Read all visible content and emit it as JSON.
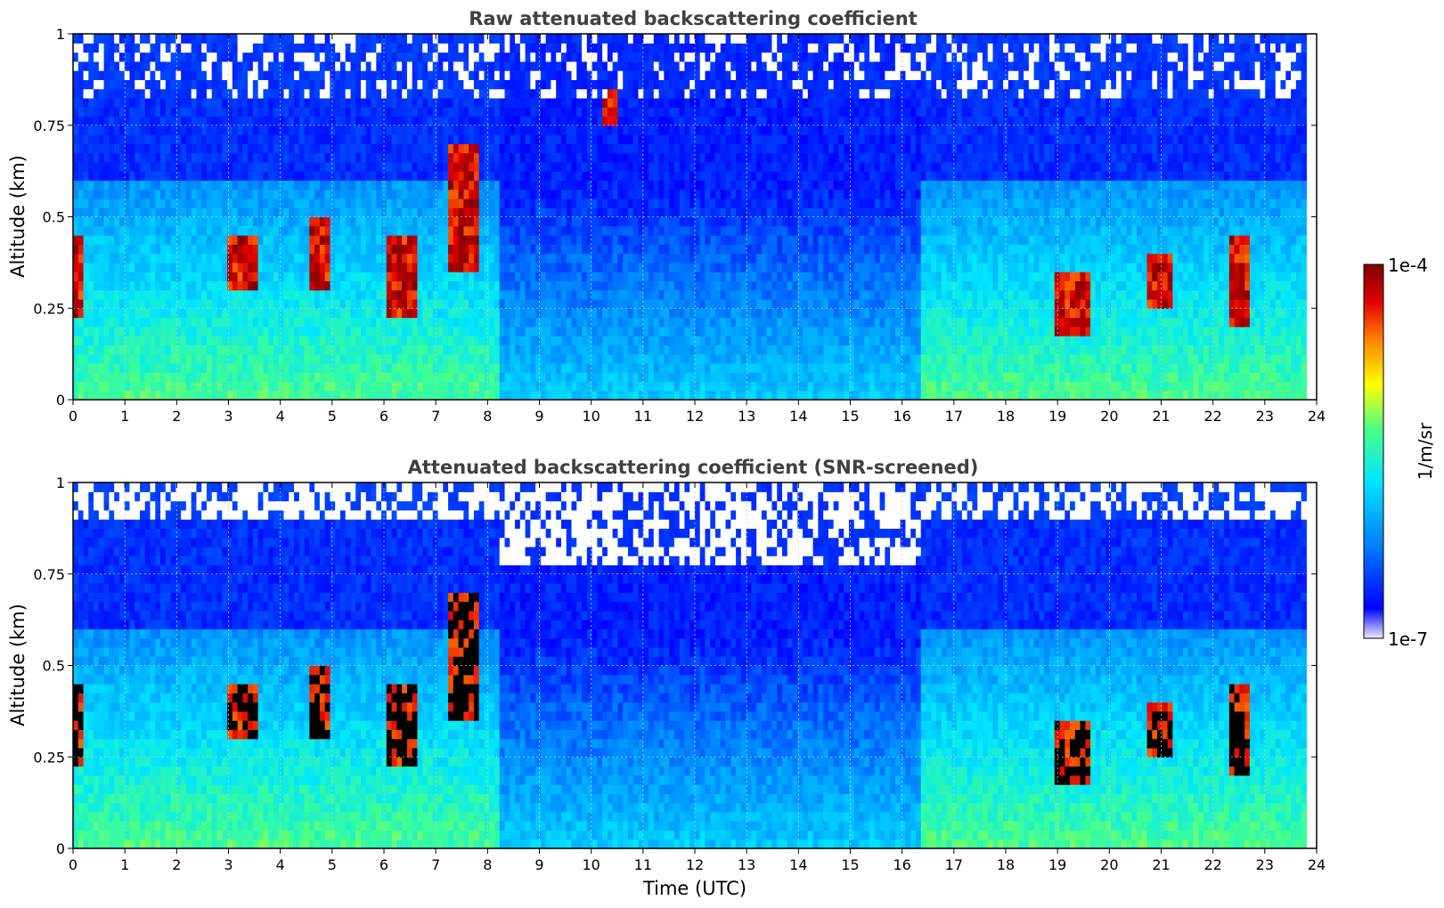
{
  "chart_data": [
    {
      "type": "heatmap",
      "title": "Raw attenuated backscattering coefficient",
      "xlabel": "",
      "ylabel": "Altitude (km)",
      "xlim": [
        0,
        24
      ],
      "ylim": [
        0,
        1
      ],
      "x_ticks": [
        "0",
        "1",
        "2",
        "3",
        "4",
        "5",
        "6",
        "7",
        "8",
        "9",
        "10",
        "11",
        "12",
        "13",
        "14",
        "15",
        "16",
        "17",
        "18",
        "19",
        "20",
        "21",
        "22",
        "23",
        "24"
      ],
      "y_ticks": [
        "0",
        "0.25",
        "0.5",
        "0.75",
        "1"
      ],
      "grid": true,
      "screened": false,
      "data_extent_hours": [
        0,
        23.8
      ],
      "enhanced_layers": [
        {
          "time": [
            0.0,
            0.15
          ],
          "altitude": [
            0.22,
            0.45
          ]
        },
        {
          "time": [
            3.0,
            3.6
          ],
          "altitude": [
            0.3,
            0.45
          ]
        },
        {
          "time": [
            4.6,
            5.0
          ],
          "altitude": [
            0.3,
            0.5
          ]
        },
        {
          "time": [
            6.0,
            6.6
          ],
          "altitude": [
            0.22,
            0.45
          ]
        },
        {
          "time": [
            7.2,
            7.8
          ],
          "altitude": [
            0.35,
            0.7
          ]
        },
        {
          "time": [
            10.2,
            10.5
          ],
          "altitude": [
            0.75,
            0.85
          ]
        },
        {
          "time": [
            18.9,
            19.6
          ],
          "altitude": [
            0.18,
            0.35
          ]
        },
        {
          "time": [
            20.7,
            21.2
          ],
          "altitude": [
            0.25,
            0.4
          ]
        },
        {
          "time": [
            22.3,
            22.7
          ],
          "altitude": [
            0.2,
            0.45
          ]
        }
      ]
    },
    {
      "type": "heatmap",
      "title": "Attenuated backscattering coefficient (SNR-screened)",
      "xlabel": "Time (UTC)",
      "ylabel": "Altitude (km)",
      "xlim": [
        0,
        24
      ],
      "ylim": [
        0,
        1
      ],
      "x_ticks": [
        "0",
        "1",
        "2",
        "3",
        "4",
        "5",
        "6",
        "7",
        "8",
        "9",
        "10",
        "11",
        "12",
        "13",
        "14",
        "15",
        "16",
        "17",
        "18",
        "19",
        "20",
        "21",
        "22",
        "23",
        "24"
      ],
      "y_ticks": [
        "0",
        "0.25",
        "0.5",
        "0.75",
        "1"
      ],
      "grid": true,
      "screened": true,
      "data_extent_hours": [
        0,
        23.8
      ],
      "enhanced_layers": [
        {
          "time": [
            0.0,
            0.15
          ],
          "altitude": [
            0.22,
            0.45
          ]
        },
        {
          "time": [
            3.0,
            3.6
          ],
          "altitude": [
            0.3,
            0.45
          ]
        },
        {
          "time": [
            4.6,
            5.0
          ],
          "altitude": [
            0.3,
            0.5
          ]
        },
        {
          "time": [
            6.0,
            6.6
          ],
          "altitude": [
            0.22,
            0.45
          ]
        },
        {
          "time": [
            7.2,
            7.8
          ],
          "altitude": [
            0.35,
            0.7
          ]
        },
        {
          "time": [
            18.9,
            19.6
          ],
          "altitude": [
            0.18,
            0.35
          ]
        },
        {
          "time": [
            20.7,
            21.2
          ],
          "altitude": [
            0.25,
            0.4
          ]
        },
        {
          "time": [
            22.3,
            22.7
          ],
          "altitude": [
            0.2,
            0.45
          ]
        }
      ]
    }
  ],
  "colorbar": {
    "label": "1/m/sr",
    "max_label": "1e-4",
    "min_label": "1e-7",
    "scale": "log",
    "colormap": [
      "#ececfc",
      "#0000ff",
      "#0080ff",
      "#00e5ff",
      "#40ff90",
      "#ffff00",
      "#ff8000",
      "#e00000",
      "#800000"
    ]
  }
}
